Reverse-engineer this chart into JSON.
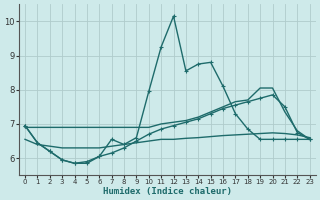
{
  "xlabel": "Humidex (Indice chaleur)",
  "xlim": [
    -0.5,
    23.5
  ],
  "ylim": [
    5.5,
    10.5
  ],
  "yticks": [
    6,
    7,
    8,
    9,
    10
  ],
  "xticks": [
    0,
    1,
    2,
    3,
    4,
    5,
    6,
    7,
    8,
    9,
    10,
    11,
    12,
    13,
    14,
    15,
    16,
    17,
    18,
    19,
    20,
    21,
    22,
    23
  ],
  "bg_color": "#ceeaea",
  "line_color": "#1e6b6b",
  "grid_color": "#b0cccc",
  "spine_color": "#555555",
  "series_spiky_x": [
    0,
    1,
    2,
    3,
    4,
    5,
    6,
    7,
    8,
    9,
    10,
    11,
    12,
    13,
    14,
    15,
    16,
    17,
    18,
    19,
    20,
    21,
    22,
    23
  ],
  "series_spiky_y": [
    6.95,
    6.45,
    6.2,
    5.95,
    5.85,
    5.85,
    6.05,
    6.55,
    6.4,
    6.6,
    7.95,
    9.25,
    10.15,
    8.55,
    8.75,
    8.8,
    8.1,
    7.3,
    6.85,
    6.55,
    6.55,
    6.55,
    6.55,
    6.55
  ],
  "series_smooth_x": [
    0,
    1,
    2,
    3,
    4,
    5,
    6,
    7,
    8,
    9,
    10,
    11,
    12,
    13,
    14,
    15,
    16,
    17,
    18,
    19,
    20,
    21,
    22,
    23
  ],
  "series_smooth_y": [
    6.95,
    6.45,
    6.2,
    5.95,
    5.85,
    5.9,
    6.05,
    6.15,
    6.3,
    6.5,
    6.7,
    6.85,
    6.95,
    7.05,
    7.15,
    7.3,
    7.45,
    7.55,
    7.65,
    7.75,
    7.85,
    7.5,
    6.75,
    6.55
  ],
  "series_upper_x": [
    0,
    10,
    11,
    12,
    13,
    14,
    15,
    16,
    17,
    18,
    19,
    20,
    21,
    22,
    23
  ],
  "series_upper_y": [
    6.9,
    6.9,
    7.0,
    7.05,
    7.1,
    7.2,
    7.35,
    7.5,
    7.65,
    7.7,
    8.05,
    8.05,
    7.35,
    6.8,
    6.55
  ],
  "series_flat_x": [
    0,
    1,
    2,
    3,
    4,
    5,
    6,
    7,
    8,
    9,
    10,
    11,
    12,
    13,
    14,
    15,
    16,
    17,
    18,
    19,
    20,
    21,
    22,
    23
  ],
  "series_flat_y": [
    6.55,
    6.4,
    6.35,
    6.3,
    6.3,
    6.3,
    6.3,
    6.35,
    6.4,
    6.45,
    6.5,
    6.55,
    6.55,
    6.58,
    6.6,
    6.63,
    6.66,
    6.68,
    6.7,
    6.72,
    6.74,
    6.72,
    6.68,
    6.6
  ]
}
